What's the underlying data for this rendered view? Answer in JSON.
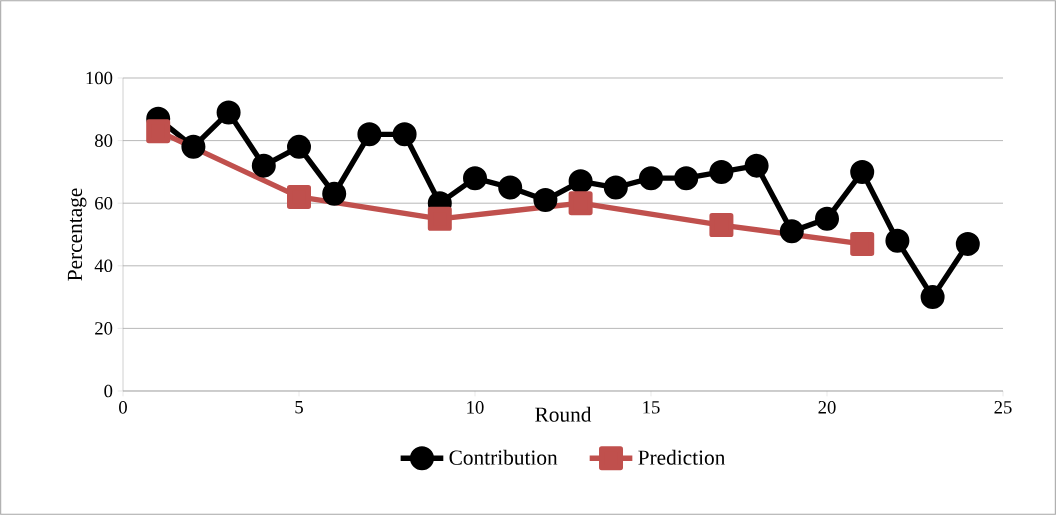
{
  "chart_data": {
    "type": "line",
    "xlabel": "Round",
    "ylabel": "Percentage",
    "xlim": [
      0,
      25
    ],
    "xticks": [
      0,
      5,
      10,
      15,
      20,
      25
    ],
    "ylim": [
      0,
      100
    ],
    "yticks": [
      0,
      20,
      40,
      60,
      80,
      100
    ],
    "grid": "y",
    "legend": "bottom",
    "line_style": "solid",
    "series": [
      {
        "name": "Contribution",
        "color": "#000000",
        "marker": "circle",
        "x": [
          1,
          2,
          3,
          4,
          5,
          6,
          7,
          8,
          9,
          10,
          11,
          12,
          13,
          14,
          15,
          16,
          17,
          18,
          19,
          20,
          21,
          22,
          23,
          24
        ],
        "values": [
          87,
          78,
          89,
          72,
          78,
          63,
          82,
          82,
          60,
          68,
          65,
          61,
          67,
          65,
          68,
          68,
          70,
          72,
          51,
          55,
          70,
          48,
          30,
          47
        ]
      },
      {
        "name": "Prediction",
        "color": "#c0504d",
        "marker": "square",
        "x": [
          1,
          5,
          9,
          13,
          17,
          21
        ],
        "values": [
          83,
          62,
          55,
          60,
          53,
          47
        ]
      }
    ]
  }
}
